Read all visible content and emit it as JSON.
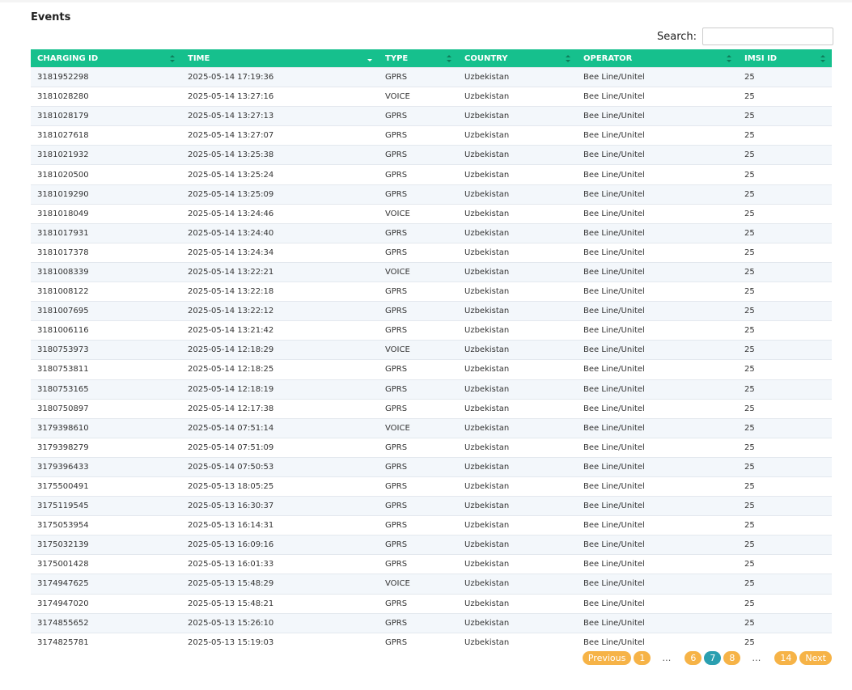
{
  "header": {
    "title": "Events"
  },
  "search": {
    "label": "Search:"
  },
  "table": {
    "columns": [
      "CHARGING ID",
      "TIME",
      "TYPE",
      "COUNTRY",
      "OPERATOR",
      "IMSI ID"
    ],
    "rows": [
      [
        "3181952298",
        "2025-05-14 17:19:36",
        "GPRS",
        "Uzbekistan",
        "Bee Line/Unitel",
        "25"
      ],
      [
        "3181028280",
        "2025-05-14 13:27:16",
        "VOICE",
        "Uzbekistan",
        "Bee Line/Unitel",
        "25"
      ],
      [
        "3181028179",
        "2025-05-14 13:27:13",
        "GPRS",
        "Uzbekistan",
        "Bee Line/Unitel",
        "25"
      ],
      [
        "3181027618",
        "2025-05-14 13:27:07",
        "GPRS",
        "Uzbekistan",
        "Bee Line/Unitel",
        "25"
      ],
      [
        "3181021932",
        "2025-05-14 13:25:38",
        "GPRS",
        "Uzbekistan",
        "Bee Line/Unitel",
        "25"
      ],
      [
        "3181020500",
        "2025-05-14 13:25:24",
        "GPRS",
        "Uzbekistan",
        "Bee Line/Unitel",
        "25"
      ],
      [
        "3181019290",
        "2025-05-14 13:25:09",
        "GPRS",
        "Uzbekistan",
        "Bee Line/Unitel",
        "25"
      ],
      [
        "3181018049",
        "2025-05-14 13:24:46",
        "VOICE",
        "Uzbekistan",
        "Bee Line/Unitel",
        "25"
      ],
      [
        "3181017931",
        "2025-05-14 13:24:40",
        "GPRS",
        "Uzbekistan",
        "Bee Line/Unitel",
        "25"
      ],
      [
        "3181017378",
        "2025-05-14 13:24:34",
        "GPRS",
        "Uzbekistan",
        "Bee Line/Unitel",
        "25"
      ],
      [
        "3181008339",
        "2025-05-14 13:22:21",
        "VOICE",
        "Uzbekistan",
        "Bee Line/Unitel",
        "25"
      ],
      [
        "3181008122",
        "2025-05-14 13:22:18",
        "GPRS",
        "Uzbekistan",
        "Bee Line/Unitel",
        "25"
      ],
      [
        "3181007695",
        "2025-05-14 13:22:12",
        "GPRS",
        "Uzbekistan",
        "Bee Line/Unitel",
        "25"
      ],
      [
        "3181006116",
        "2025-05-14 13:21:42",
        "GPRS",
        "Uzbekistan",
        "Bee Line/Unitel",
        "25"
      ],
      [
        "3180753973",
        "2025-05-14 12:18:29",
        "VOICE",
        "Uzbekistan",
        "Bee Line/Unitel",
        "25"
      ],
      [
        "3180753811",
        "2025-05-14 12:18:25",
        "GPRS",
        "Uzbekistan",
        "Bee Line/Unitel",
        "25"
      ],
      [
        "3180753165",
        "2025-05-14 12:18:19",
        "GPRS",
        "Uzbekistan",
        "Bee Line/Unitel",
        "25"
      ],
      [
        "3180750897",
        "2025-05-14 12:17:38",
        "GPRS",
        "Uzbekistan",
        "Bee Line/Unitel",
        "25"
      ],
      [
        "3179398610",
        "2025-05-14 07:51:14",
        "VOICE",
        "Uzbekistan",
        "Bee Line/Unitel",
        "25"
      ],
      [
        "3179398279",
        "2025-05-14 07:51:09",
        "GPRS",
        "Uzbekistan",
        "Bee Line/Unitel",
        "25"
      ],
      [
        "3179396433",
        "2025-05-14 07:50:53",
        "GPRS",
        "Uzbekistan",
        "Bee Line/Unitel",
        "25"
      ],
      [
        "3175500491",
        "2025-05-13 18:05:25",
        "GPRS",
        "Uzbekistan",
        "Bee Line/Unitel",
        "25"
      ],
      [
        "3175119545",
        "2025-05-13 16:30:37",
        "GPRS",
        "Uzbekistan",
        "Bee Line/Unitel",
        "25"
      ],
      [
        "3175053954",
        "2025-05-13 16:14:31",
        "GPRS",
        "Uzbekistan",
        "Bee Line/Unitel",
        "25"
      ],
      [
        "3175032139",
        "2025-05-13 16:09:16",
        "GPRS",
        "Uzbekistan",
        "Bee Line/Unitel",
        "25"
      ],
      [
        "3175001428",
        "2025-05-13 16:01:33",
        "GPRS",
        "Uzbekistan",
        "Bee Line/Unitel",
        "25"
      ],
      [
        "3174947625",
        "2025-05-13 15:48:29",
        "VOICE",
        "Uzbekistan",
        "Bee Line/Unitel",
        "25"
      ],
      [
        "3174947020",
        "2025-05-13 15:48:21",
        "GPRS",
        "Uzbekistan",
        "Bee Line/Unitel",
        "25"
      ],
      [
        "3174855652",
        "2025-05-13 15:26:10",
        "GPRS",
        "Uzbekistan",
        "Bee Line/Unitel",
        "25"
      ],
      [
        "3174825781",
        "2025-05-13 15:19:03",
        "GPRS",
        "Uzbekistan",
        "Bee Line/Unitel",
        "25"
      ]
    ]
  },
  "pagination": [
    "Previous",
    "1",
    "…",
    "6",
    "7",
    "8",
    "…",
    "14",
    "Next"
  ]
}
